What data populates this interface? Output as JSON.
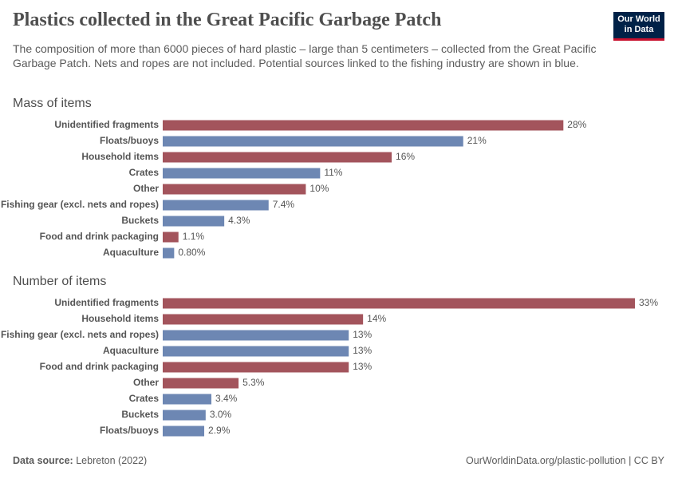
{
  "title": "Plastics collected in the Great Pacific Garbage Patch",
  "subtitle": "The composition of more than 6000 pieces of hard plastic – large than 5 centimeters – collected from the Great Pacific Garbage Patch. Nets and ropes are not included. Potential sources linked to the fishing industry are shown in blue.",
  "logo": [
    "Our World",
    "in Data"
  ],
  "source_label": "Data source:",
  "source": "Lebreton (2022)",
  "footer_right": "OurWorldinData.org/plastic-pollution | CC BY",
  "chart_data": [
    {
      "type": "bar",
      "orientation": "horizontal",
      "title": "Mass of items",
      "categories": [
        "Unidentified fragments",
        "Floats/buoys",
        "Household items",
        "Crates",
        "Other",
        "Fishing gear (excl. nets and ropes)",
        "Buckets",
        "Food and drink packaging",
        "Aquaculture"
      ],
      "values": [
        28,
        21,
        16,
        11,
        10,
        7.4,
        4.3,
        1.1,
        0.8
      ],
      "value_labels": [
        "28%",
        "21%",
        "16%",
        "11%",
        "10%",
        "7.4%",
        "4.3%",
        "1.1%",
        "0.80%"
      ],
      "colors": [
        "#a3545c",
        "#6d87b3",
        "#a3545c",
        "#6d87b3",
        "#a3545c",
        "#6d87b3",
        "#6d87b3",
        "#a3545c",
        "#6d87b3"
      ]
    },
    {
      "type": "bar",
      "orientation": "horizontal",
      "title": "Number of items",
      "categories": [
        "Unidentified fragments",
        "Household items",
        "Fishing gear (excl. nets and ropes)",
        "Aquaculture",
        "Food and drink packaging",
        "Other",
        "Crates",
        "Buckets",
        "Floats/buoys"
      ],
      "values": [
        33,
        14,
        13,
        13,
        13,
        5.3,
        3.4,
        3.0,
        2.9
      ],
      "value_labels": [
        "33%",
        "14%",
        "13%",
        "13%",
        "13%",
        "5.3%",
        "3.4%",
        "3.0%",
        "2.9%"
      ],
      "colors": [
        "#a3545c",
        "#a3545c",
        "#6d87b3",
        "#6d87b3",
        "#a3545c",
        "#a3545c",
        "#6d87b3",
        "#6d87b3",
        "#6d87b3"
      ]
    }
  ]
}
